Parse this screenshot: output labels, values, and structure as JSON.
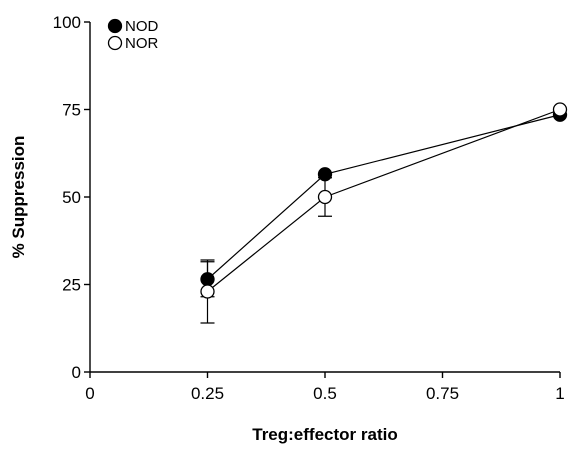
{
  "chart_data": {
    "type": "line",
    "xlabel": "Treg:effector ratio",
    "ylabel": "% Suppression",
    "xlim": [
      0,
      1
    ],
    "ylim": [
      0,
      100
    ],
    "x_ticks": [
      {
        "value": 0,
        "label": "0"
      },
      {
        "value": 0.25,
        "label": "0.25"
      },
      {
        "value": 0.5,
        "label": "0.5"
      },
      {
        "value": 0.75,
        "label": "0.75"
      },
      {
        "value": 1,
        "label": "1"
      }
    ],
    "y_ticks": [
      {
        "value": 0,
        "label": "0"
      },
      {
        "value": 25,
        "label": "25"
      },
      {
        "value": 50,
        "label": "50"
      },
      {
        "value": 75,
        "label": "75"
      },
      {
        "value": 100,
        "label": "100"
      }
    ],
    "legend_position": "top-left",
    "grid": false,
    "series": [
      {
        "name": "NOD",
        "marker": "filled-circle",
        "color": "#000000",
        "points": [
          {
            "x": 0.25,
            "y": 26.5,
            "err": 5
          },
          {
            "x": 0.5,
            "y": 56.5,
            "err": 0
          },
          {
            "x": 1,
            "y": 73.5,
            "err": 0
          }
        ]
      },
      {
        "name": "NOR",
        "marker": "open-circle",
        "color": "#000000",
        "points": [
          {
            "x": 0.25,
            "y": 23,
            "err": 9
          },
          {
            "x": 0.5,
            "y": 50,
            "err": 5.5
          },
          {
            "x": 1,
            "y": 75,
            "err": 0
          }
        ]
      }
    ]
  }
}
